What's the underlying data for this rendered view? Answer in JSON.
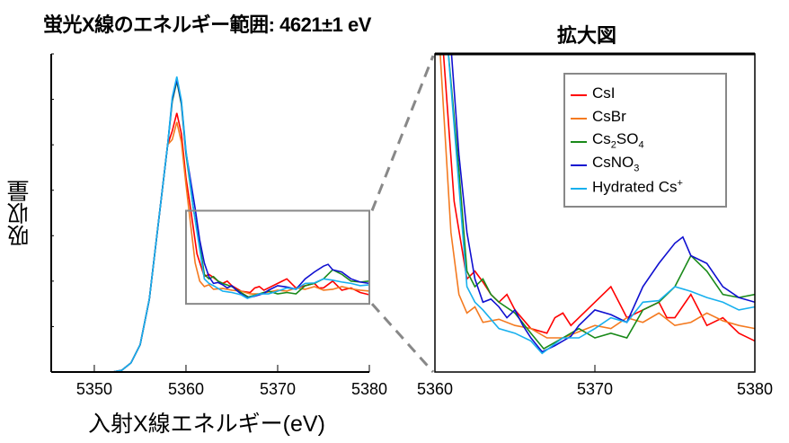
{
  "title": "蛍光X線のエネルギー範囲: 4621±1 eV",
  "zoom_title": "拡大図",
  "chart_data": [
    {
      "type": "line",
      "name": "full-spectrum",
      "xlabel": "入射X線エネルギー(eV)",
      "ylabel": "吸収量",
      "xlim": [
        5345.3,
        5380
      ],
      "ylim": [
        0,
        7
      ],
      "xticks": [
        5350,
        5360,
        5370,
        5380
      ],
      "xtick_labels": [
        "5350",
        "5360",
        "5370",
        "5380"
      ],
      "yticks": [
        0,
        1,
        2,
        3,
        4,
        5,
        6,
        7
      ],
      "zoom_region": {
        "x": [
          5360,
          5380
        ],
        "y": [
          1.5,
          3.55
        ]
      }
    },
    {
      "type": "line",
      "name": "zoom",
      "title": "拡大図",
      "xlim": [
        5360,
        5380
      ],
      "ylim": [
        1.5,
        3.55
      ],
      "xticks": [
        5360,
        5370,
        5380
      ],
      "xtick_labels": [
        "5360",
        "5370",
        "5380"
      ],
      "legend_position": "top-right"
    }
  ],
  "series": [
    {
      "name": "CsI",
      "label_main": "CsI",
      "sub": "",
      "tail": "",
      "sup": "",
      "color": "#ff0000",
      "peak": 5.7,
      "points": [
        [
          5360.5,
          3.6
        ],
        [
          5361.2,
          2.6
        ],
        [
          5362,
          2.1
        ],
        [
          5362.5,
          2.15
        ],
        [
          5363,
          2.08
        ],
        [
          5363.5,
          2.0
        ],
        [
          5364,
          1.95
        ],
        [
          5364.5,
          2.0
        ],
        [
          5365,
          1.9
        ],
        [
          5366,
          1.78
        ],
        [
          5367,
          1.75
        ],
        [
          5367.5,
          1.85
        ],
        [
          5368,
          1.88
        ],
        [
          5368.5,
          1.8
        ],
        [
          5369,
          1.85
        ],
        [
          5370,
          1.95
        ],
        [
          5370.5,
          2.0
        ],
        [
          5371,
          2.05
        ],
        [
          5371.5,
          1.95
        ],
        [
          5372,
          1.85
        ],
        [
          5373,
          1.9
        ],
        [
          5374,
          1.95
        ],
        [
          5374.5,
          1.85
        ],
        [
          5375,
          1.85
        ],
        [
          5376,
          2.0
        ],
        [
          5376.5,
          1.9
        ],
        [
          5377,
          1.8
        ],
        [
          5378,
          1.85
        ],
        [
          5379,
          1.75
        ],
        [
          5380,
          1.7
        ]
      ]
    },
    {
      "name": "CsBr",
      "label_main": "CsBr",
      "sub": "",
      "tail": "",
      "sup": "",
      "color": "#f47a20",
      "peak": 5.5,
      "points": [
        [
          5360.3,
          3.6
        ],
        [
          5361,
          2.4
        ],
        [
          5361.5,
          2.0
        ],
        [
          5362,
          1.88
        ],
        [
          5362.5,
          1.92
        ],
        [
          5363,
          1.82
        ],
        [
          5364,
          1.84
        ],
        [
          5365,
          1.8
        ],
        [
          5366,
          1.78
        ],
        [
          5367,
          1.72
        ],
        [
          5368,
          1.72
        ],
        [
          5369,
          1.76
        ],
        [
          5370,
          1.8
        ],
        [
          5371,
          1.78
        ],
        [
          5372,
          1.85
        ],
        [
          5373,
          1.82
        ],
        [
          5374,
          1.88
        ],
        [
          5375,
          1.8
        ],
        [
          5376,
          1.82
        ],
        [
          5377,
          1.88
        ],
        [
          5378,
          1.83
        ],
        [
          5379,
          1.8
        ],
        [
          5380,
          1.78
        ]
      ]
    },
    {
      "name": "Cs2SO4",
      "label_main": "Cs",
      "sub": "2",
      "tail": "SO",
      "sub2": "4",
      "sup": "",
      "color": "#1a8a1a",
      "peak": 6.4,
      "points": [
        [
          5360.8,
          3.6
        ],
        [
          5361.5,
          2.8
        ],
        [
          5362,
          2.15
        ],
        [
          5362.5,
          2.05
        ],
        [
          5363,
          2.1
        ],
        [
          5363.5,
          2.0
        ],
        [
          5364,
          1.95
        ],
        [
          5365,
          1.88
        ],
        [
          5366,
          1.75
        ],
        [
          5366.8,
          1.65
        ],
        [
          5368,
          1.72
        ],
        [
          5369,
          1.78
        ],
        [
          5370,
          1.72
        ],
        [
          5371,
          1.75
        ],
        [
          5372,
          1.72
        ],
        [
          5373,
          1.9
        ],
        [
          5374,
          1.95
        ],
        [
          5375,
          2.05
        ],
        [
          5376,
          2.25
        ],
        [
          5377,
          2.15
        ],
        [
          5378,
          2.0
        ],
        [
          5379,
          1.98
        ],
        [
          5380,
          2.0
        ]
      ]
    },
    {
      "name": "CsNO3",
      "label_main": "CsNO",
      "sub": "3",
      "tail": "",
      "sup": "",
      "color": "#1010d0",
      "peak": 6.45,
      "points": [
        [
          5361,
          3.6
        ],
        [
          5361.5,
          2.9
        ],
        [
          5362,
          2.4
        ],
        [
          5362.5,
          2.1
        ],
        [
          5363,
          1.95
        ],
        [
          5363.5,
          1.97
        ],
        [
          5364,
          1.92
        ],
        [
          5364.5,
          1.85
        ],
        [
          5365,
          1.9
        ],
        [
          5365.5,
          1.8
        ],
        [
          5366,
          1.72
        ],
        [
          5366.7,
          1.63
        ],
        [
          5367.5,
          1.67
        ],
        [
          5368.5,
          1.73
        ],
        [
          5369,
          1.8
        ],
        [
          5370,
          1.9
        ],
        [
          5371,
          1.87
        ],
        [
          5372,
          1.82
        ],
        [
          5373,
          2.05
        ],
        [
          5374,
          2.2
        ],
        [
          5375,
          2.33
        ],
        [
          5375.5,
          2.37
        ],
        [
          5376,
          2.25
        ],
        [
          5377,
          2.2
        ],
        [
          5378,
          2.05
        ],
        [
          5379,
          1.98
        ],
        [
          5380,
          1.95
        ]
      ]
    },
    {
      "name": "Hydrated Cs+",
      "label_main": "Hydrated Cs",
      "sub": "",
      "tail": "",
      "sup": "+",
      "color": "#18b0ee",
      "peak": 6.5,
      "points": [
        [
          5360.8,
          3.6
        ],
        [
          5361.5,
          2.7
        ],
        [
          5362,
          2.05
        ],
        [
          5362.5,
          1.95
        ],
        [
          5363,
          1.9
        ],
        [
          5364,
          1.78
        ],
        [
          5365,
          1.75
        ],
        [
          5366,
          1.7
        ],
        [
          5366.7,
          1.62
        ],
        [
          5368,
          1.72
        ],
        [
          5369,
          1.72
        ],
        [
          5370,
          1.78
        ],
        [
          5371,
          1.85
        ],
        [
          5372,
          1.82
        ],
        [
          5373,
          1.95
        ],
        [
          5374,
          1.96
        ],
        [
          5375,
          2.05
        ],
        [
          5376,
          2.02
        ],
        [
          5377,
          1.98
        ],
        [
          5378,
          1.95
        ],
        [
          5379,
          1.9
        ],
        [
          5380,
          1.92
        ]
      ]
    }
  ]
}
